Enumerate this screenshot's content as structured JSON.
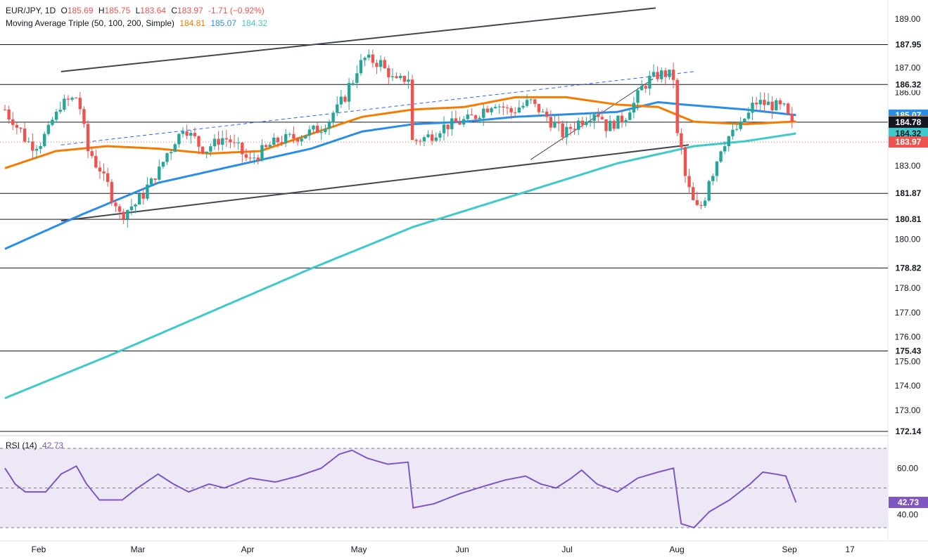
{
  "header": {
    "symbol": "EUR/JPY, 1D",
    "open_label": "O",
    "open": "185.69",
    "high_label": "H",
    "high": "185.75",
    "low_label": "L",
    "low": "183.64",
    "close_label": "C",
    "close": "183.97",
    "change": "-1.71 (−0.92%)"
  },
  "ma_legend": {
    "name": "Moving Average Triple (50, 100, 200, Simple)",
    "v50": "184.81",
    "v100": "185.07",
    "v200": "184.32"
  },
  "rsi_legend": {
    "name": "RSI (14)",
    "value": "42.73"
  },
  "colors": {
    "up": "#26a69a",
    "down": "#ef5350",
    "ma50": "#f57c00",
    "ma100": "#2a8ee6",
    "ma200": "#3ec9cc",
    "rsi": "#7e57c2",
    "rsi_band": "#ede7f6"
  },
  "chart_data": {
    "type": "candlestick",
    "y_ticks": [
      "189.00",
      "187.00",
      "186.00",
      "184.00",
      "183.00",
      "180.00",
      "178.00",
      "177.00",
      "176.00",
      "175.00",
      "174.00",
      "173.00"
    ],
    "x_ticks": [
      "Feb",
      "Mar",
      "Apr",
      "May",
      "Jun",
      "Jul",
      "Aug",
      "Sep",
      "17"
    ],
    "level_lines": [
      187.95,
      186.32,
      184.78,
      181.87,
      180.81,
      178.82,
      175.43,
      172.14
    ],
    "price_tags": [
      {
        "text": "187.95",
        "value": 187.95,
        "style": "level"
      },
      {
        "text": "186.32",
        "value": 186.32,
        "style": "level"
      },
      {
        "text": "185.07",
        "value": 185.07,
        "style": "ma100"
      },
      {
        "text": "184.81",
        "value": 184.81,
        "style": "ma50"
      },
      {
        "text": "184.78",
        "value": 184.78,
        "style": "level"
      },
      {
        "text": "184.32",
        "value": 184.32,
        "style": "ma200"
      },
      {
        "text": "183.97",
        "value": 183.97,
        "style": "close"
      },
      {
        "text": "181.87",
        "value": 181.87,
        "style": "level"
      },
      {
        "text": "180.81",
        "value": 180.81,
        "style": "level"
      },
      {
        "text": "178.82",
        "value": 178.82,
        "style": "level"
      },
      {
        "text": "175.43",
        "value": 175.43,
        "style": "level"
      },
      {
        "text": "172.14",
        "value": 172.14,
        "style": "level"
      }
    ],
    "rsi_ticks": [
      "60.00",
      "40.00"
    ],
    "rsi_tag": "42.73",
    "rsi_levels": [
      70,
      50,
      30
    ],
    "close_pts": [
      [
        0,
        185.3
      ],
      [
        5,
        184.6
      ],
      [
        10,
        183.8
      ],
      [
        15,
        184.0
      ],
      [
        22,
        185.5
      ],
      [
        28,
        185.8
      ],
      [
        33,
        183.6
      ],
      [
        38,
        182.7
      ],
      [
        45,
        181.0
      ],
      [
        52,
        181.5
      ],
      [
        60,
        182.8
      ],
      [
        70,
        184.6
      ],
      [
        78,
        183.6
      ],
      [
        86,
        184.2
      ],
      [
        96,
        183.2
      ],
      [
        106,
        184.0
      ],
      [
        115,
        184.2
      ],
      [
        125,
        184.6
      ],
      [
        132,
        185.6
      ],
      [
        140,
        187.4
      ],
      [
        147,
        187.2
      ],
      [
        153,
        186.4
      ],
      [
        158,
        186.6
      ],
      [
        160,
        184.0
      ],
      [
        166,
        184.2
      ],
      [
        172,
        184.6
      ],
      [
        182,
        184.9
      ],
      [
        192,
        185.6
      ],
      [
        198,
        185.2
      ],
      [
        206,
        185.6
      ],
      [
        212,
        185.0
      ],
      [
        219,
        184.3
      ],
      [
        225,
        184.8
      ],
      [
        232,
        185.3
      ],
      [
        236,
        184.6
      ],
      [
        242,
        184.9
      ],
      [
        252,
        186.5
      ],
      [
        258,
        186.8
      ],
      [
        262,
        186.6
      ],
      [
        264,
        184.2
      ],
      [
        268,
        182.0
      ],
      [
        272,
        181.0
      ],
      [
        276,
        182.5
      ],
      [
        282,
        184.0
      ],
      [
        288,
        184.6
      ],
      [
        294,
        185.6
      ],
      [
        300,
        185.5
      ],
      [
        306,
        185.3
      ],
      [
        310,
        183.97
      ]
    ],
    "rsi_pts": [
      [
        0,
        60
      ],
      [
        4,
        52
      ],
      [
        8,
        48
      ],
      [
        16,
        48
      ],
      [
        22,
        57
      ],
      [
        28,
        61
      ],
      [
        32,
        52
      ],
      [
        37,
        44
      ],
      [
        46,
        44
      ],
      [
        52,
        50
      ],
      [
        60,
        57
      ],
      [
        66,
        52
      ],
      [
        72,
        48
      ],
      [
        80,
        52
      ],
      [
        86,
        50
      ],
      [
        96,
        55
      ],
      [
        106,
        53
      ],
      [
        115,
        56
      ],
      [
        124,
        60
      ],
      [
        131,
        67
      ],
      [
        136,
        69
      ],
      [
        142,
        65
      ],
      [
        150,
        62
      ],
      [
        158,
        63
      ],
      [
        160,
        40
      ],
      [
        168,
        42
      ],
      [
        178,
        47
      ],
      [
        188,
        51
      ],
      [
        196,
        54
      ],
      [
        204,
        56
      ],
      [
        210,
        52
      ],
      [
        216,
        50
      ],
      [
        222,
        55
      ],
      [
        226,
        59
      ],
      [
        232,
        52
      ],
      [
        240,
        48
      ],
      [
        248,
        55
      ],
      [
        256,
        58
      ],
      [
        262,
        60
      ],
      [
        265,
        32
      ],
      [
        270,
        30
      ],
      [
        276,
        38
      ],
      [
        284,
        44
      ],
      [
        292,
        52
      ],
      [
        297,
        58
      ],
      [
        302,
        57
      ],
      [
        306,
        56
      ],
      [
        310,
        42.73
      ]
    ],
    "ma50_pts": [
      [
        0,
        182.9
      ],
      [
        20,
        183.6
      ],
      [
        40,
        183.8
      ],
      [
        60,
        183.7
      ],
      [
        80,
        183.5
      ],
      [
        100,
        183.6
      ],
      [
        120,
        184.3
      ],
      [
        140,
        185.0
      ],
      [
        160,
        185.3
      ],
      [
        180,
        185.4
      ],
      [
        200,
        185.8
      ],
      [
        220,
        185.8
      ],
      [
        240,
        185.5
      ],
      [
        256,
        185.4
      ],
      [
        270,
        184.8
      ],
      [
        290,
        184.7
      ],
      [
        310,
        184.81
      ]
    ],
    "ma100_pts": [
      [
        0,
        179.6
      ],
      [
        30,
        181.0
      ],
      [
        60,
        182.3
      ],
      [
        90,
        183.0
      ],
      [
        120,
        183.7
      ],
      [
        140,
        184.4
      ],
      [
        160,
        184.7
      ],
      [
        180,
        184.8
      ],
      [
        200,
        185.0
      ],
      [
        220,
        185.1
      ],
      [
        240,
        185.2
      ],
      [
        256,
        185.6
      ],
      [
        266,
        185.5
      ],
      [
        290,
        185.3
      ],
      [
        310,
        185.07
      ]
    ],
    "ma200_pts": [
      [
        0,
        173.5
      ],
      [
        40,
        175.2
      ],
      [
        80,
        177.0
      ],
      [
        120,
        178.8
      ],
      [
        160,
        180.5
      ],
      [
        200,
        181.8
      ],
      [
        240,
        183.1
      ],
      [
        270,
        183.8
      ],
      [
        290,
        184.0
      ],
      [
        310,
        184.32
      ]
    ],
    "trend_lines": [
      {
        "from": [
          22,
          186.85
        ],
        "to": [
          255,
          189.45
        ],
        "style": "solid"
      },
      {
        "from": [
          22,
          180.75
        ],
        "to": [
          268,
          183.85
        ],
        "style": "solid"
      },
      {
        "from": [
          22,
          183.85
        ],
        "to": [
          270,
          186.85
        ],
        "style": "dashed"
      },
      {
        "from": [
          206,
          183.25
        ],
        "to": [
          254,
          186.55
        ],
        "style": "thin"
      }
    ]
  }
}
